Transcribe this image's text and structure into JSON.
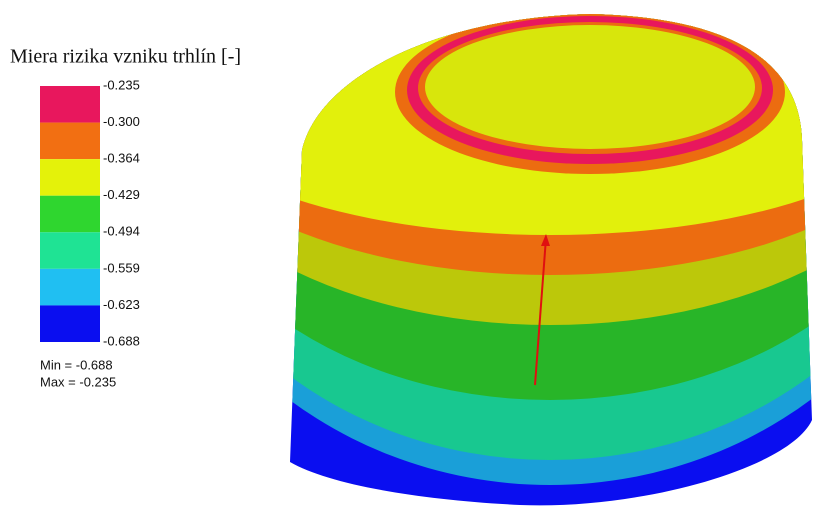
{
  "title": "Miera rizika vzniku trhlín [-]",
  "legend": {
    "levels": [
      "-0.235",
      "-0.300",
      "-0.364",
      "-0.429",
      "-0.494",
      "-0.559",
      "-0.623",
      "-0.688"
    ],
    "colors": [
      "#e8175d",
      "#f26f12",
      "#e4f20a",
      "#2fd62f",
      "#1fe394",
      "#20bff2",
      "#0a0ef0"
    ]
  },
  "min_label": "Min = -0.688",
  "max_label": "Max = -0.235"
}
